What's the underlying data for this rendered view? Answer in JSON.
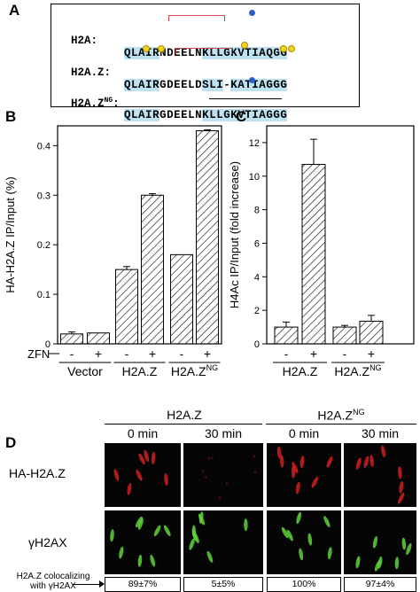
{
  "panelA": {
    "label": "A",
    "rows": [
      {
        "name": "H2A:",
        "name_sup": "",
        "seq": "QLAIRNDEELNKLLGKVTIAQGG"
      },
      {
        "name": "H2A.Z:",
        "name_sup": "",
        "seq": "QLAIRGDEELDSLI-KATIAGGG"
      },
      {
        "name": "H2A.Z",
        "name_sup": "NG",
        "name_suffix": ":",
        "seq": "QLAIRGDEELNKLLGKVTIAGGG"
      }
    ]
  },
  "panelB": {
    "label": "B",
    "chart_data": {
      "type": "bar",
      "ylabel": "HA-H2A.Z IP/Input (%)",
      "ylim": [
        0,
        0.44
      ],
      "yticks": [
        "0",
        "0.1",
        "0.2",
        "0.3",
        "0.4"
      ],
      "groups": [
        "Vector",
        "H2A.Z",
        "H2A.Z"
      ],
      "group_sup": [
        "",
        "",
        "NG"
      ],
      "row_label": "ZFN",
      "zfn_signs": [
        "-",
        "+",
        "-",
        "+",
        "-",
        "+"
      ],
      "values": [
        0.02,
        0.022,
        0.15,
        0.3,
        0.18,
        0.43
      ],
      "errors": [
        0.004,
        0.0,
        0.006,
        0.003,
        0.0,
        0.002
      ]
    }
  },
  "panelC": {
    "label": "C",
    "chart_data": {
      "type": "bar",
      "ylabel": "H4Ac IP/Input (fold increase)",
      "ylim": [
        0,
        13
      ],
      "yticks": [
        "0",
        "2",
        "4",
        "6",
        "8",
        "10",
        "12"
      ],
      "groups": [
        "H2A.Z",
        "H2A.Z"
      ],
      "group_sup": [
        "",
        "NG"
      ],
      "zfn_signs": [
        "-",
        "+",
        "-",
        "+"
      ],
      "values": [
        1.0,
        10.7,
        1.0,
        1.35
      ],
      "errors": [
        0.3,
        1.5,
        0.1,
        0.35
      ]
    }
  },
  "panelD": {
    "label": "D",
    "group1": "H2A.Z",
    "group2": "H2A.Z",
    "group2_sup": "NG",
    "times": [
      "0 min",
      "30 min",
      "0 min",
      "30 min"
    ],
    "row1": "HA-H2A.Z",
    "row2": "γH2AX",
    "caption_line1": "H2A.Z colocalizing",
    "caption_line2": "with γH2AX",
    "values": [
      "89±7%",
      "5±5%",
      "100%",
      "97±4%"
    ]
  },
  "colors": {
    "highlight": "#bde3f2",
    "bracket": "#d24a4a",
    "blue_dot": "#2c5fc9",
    "yellow_dot": "#f2d31a",
    "red_signal": "#d01e1e",
    "green_signal": "#5fd23a"
  }
}
